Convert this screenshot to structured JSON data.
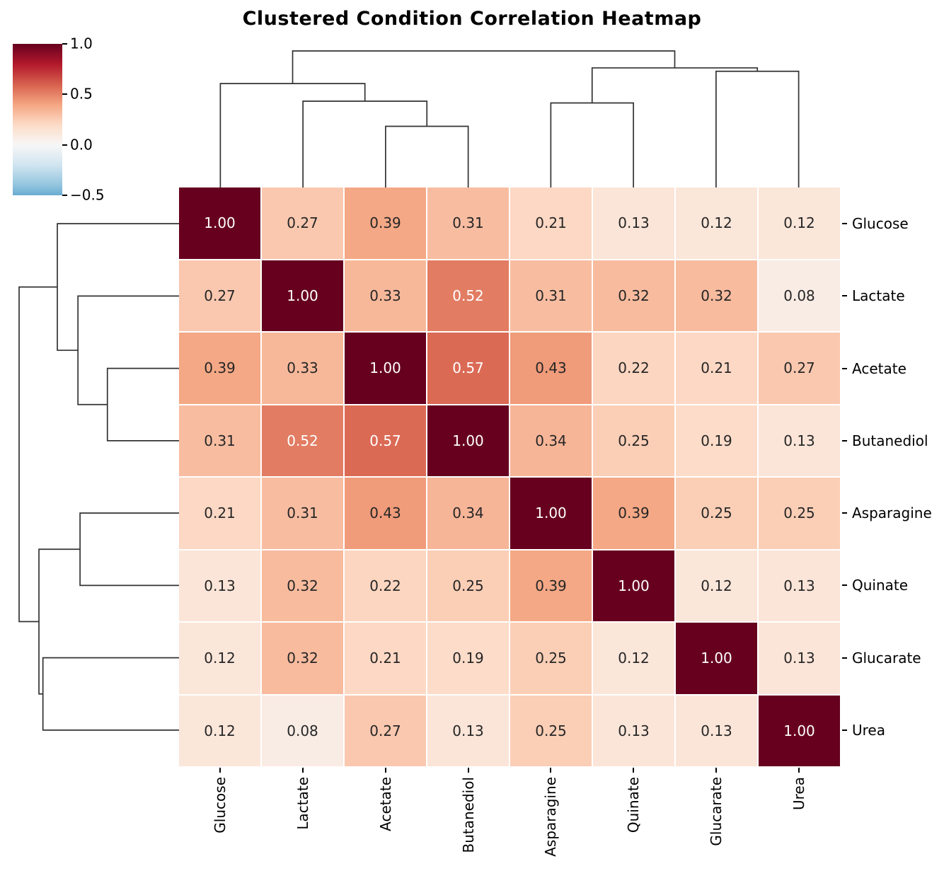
{
  "title": "Clustered Condition Correlation Heatmap",
  "chart_data": {
    "type": "heatmap",
    "title": "Clustered Condition Correlation Heatmap",
    "rows": [
      "Glucose",
      "Lactate",
      "Acetate",
      "Butanediol",
      "Asparagine",
      "Quinate",
      "Glucarate",
      "Urea"
    ],
    "columns": [
      "Glucose",
      "Lactate",
      "Acetate",
      "Butanediol",
      "Asparagine",
      "Quinate",
      "Glucarate",
      "Urea"
    ],
    "matrix": [
      [
        1.0,
        0.27,
        0.39,
        0.31,
        0.21,
        0.13,
        0.12,
        0.12
      ],
      [
        0.27,
        1.0,
        0.33,
        0.52,
        0.31,
        0.32,
        0.32,
        0.08
      ],
      [
        0.39,
        0.33,
        1.0,
        0.57,
        0.43,
        0.22,
        0.21,
        0.27
      ],
      [
        0.31,
        0.52,
        0.57,
        1.0,
        0.34,
        0.25,
        0.19,
        0.13
      ],
      [
        0.21,
        0.31,
        0.43,
        0.34,
        1.0,
        0.39,
        0.25,
        0.25
      ],
      [
        0.13,
        0.32,
        0.22,
        0.25,
        0.39,
        1.0,
        0.12,
        0.13
      ],
      [
        0.12,
        0.32,
        0.21,
        0.19,
        0.25,
        0.12,
        1.0,
        0.13
      ],
      [
        0.12,
        0.08,
        0.27,
        0.13,
        0.25,
        0.13,
        0.13,
        1.0
      ]
    ],
    "annotation_decimals": 2,
    "colormap": {
      "name": "RdBu_r",
      "stops": [
        "#053061",
        "#2166ac",
        "#4393c3",
        "#92c5de",
        "#d1e5f0",
        "#f7f7f7",
        "#fddbc7",
        "#f4a582",
        "#d6604d",
        "#b2182b",
        "#67001f"
      ],
      "value_range_mapped": [
        -1,
        1
      ]
    },
    "colorbar": {
      "top_value": 1.0,
      "bottom_value": -0.5,
      "ticks": [
        {
          "value": 1.0,
          "label": "1.0"
        },
        {
          "value": 0.5,
          "label": "0.5"
        },
        {
          "value": 0.0,
          "label": "0.0"
        },
        {
          "value": -0.5,
          "label": "−0.5"
        }
      ]
    },
    "dendrogram": {
      "leaf_order": [
        "Glucose",
        "Lactate",
        "Acetate",
        "Butanediol",
        "Asparagine",
        "Quinate",
        "Glucarate",
        "Urea"
      ],
      "merges": [
        {
          "name": "acetate-butanediol",
          "a": "leaf:2",
          "b": "leaf:3",
          "height": 0.448
        },
        {
          "name": "lactate-acetbut",
          "a": "leaf:1",
          "b": "merge:0",
          "height": 0.632
        },
        {
          "name": "glucose-cluster",
          "a": "leaf:0",
          "b": "merge:1",
          "height": 0.761
        },
        {
          "name": "asparagine-quinate",
          "a": "leaf:4",
          "b": "leaf:5",
          "height": 0.619
        },
        {
          "name": "glucarate-urea",
          "a": "leaf:6",
          "b": "leaf:7",
          "height": 0.851
        },
        {
          "name": "right-cluster",
          "a": "merge:3",
          "b": "merge:4",
          "height": 0.876
        },
        {
          "name": "root",
          "a": "merge:2",
          "b": "merge:5",
          "height": 1.0
        }
      ]
    },
    "annotation_text_colors": {
      "dark": "#262626",
      "light": "#ffffff"
    },
    "dendrogram_line_color": "#333333",
    "tick_color": "#000000"
  }
}
